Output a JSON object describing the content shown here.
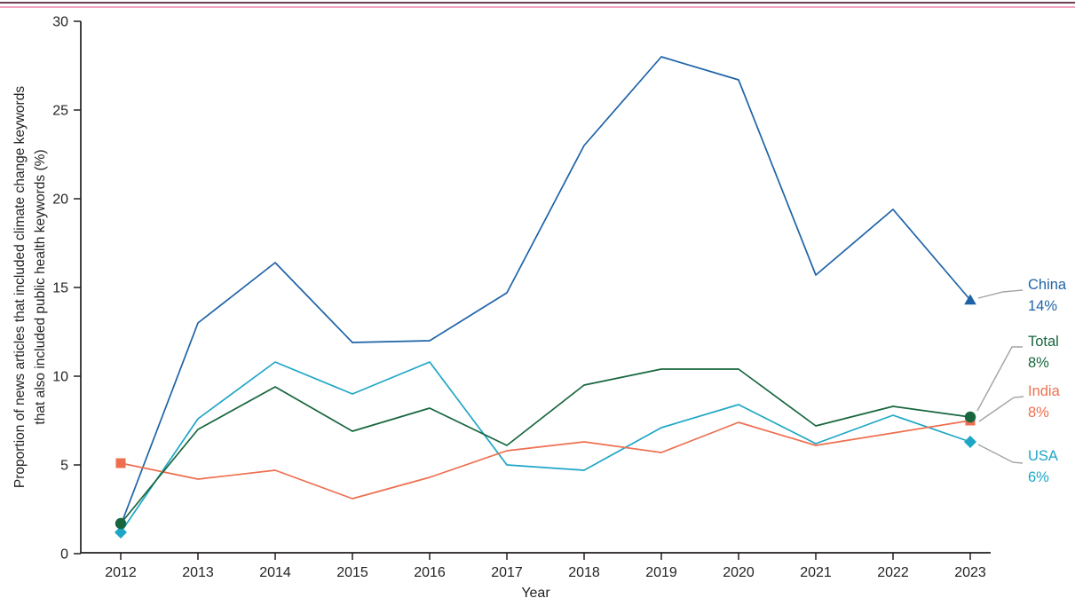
{
  "page": {
    "rule_dark_color": "#6e3e54",
    "rule_pink_color": "#f2a3c0",
    "axis_color": "#231f20",
    "leader_color": "#a3a3a3"
  },
  "chart_data": {
    "type": "line",
    "title": "",
    "xlabel": "Year",
    "ylabel_line1": "Proportion of news articles that included climate change keywords",
    "ylabel_line2": "that also included public health keywords (%)",
    "ylim": [
      0,
      30
    ],
    "yticks": [
      0,
      5,
      10,
      15,
      20,
      25,
      30
    ],
    "x": [
      "2012",
      "2013",
      "2014",
      "2015",
      "2016",
      "2017",
      "2018",
      "2019",
      "2020",
      "2021",
      "2022",
      "2023"
    ],
    "grid": false,
    "legend_position": "right-end-labels",
    "series": [
      {
        "name": "China",
        "color": "#1e63a8",
        "marker": "triangle",
        "start_marker": false,
        "end_label": "China",
        "end_value": "14%",
        "values": [
          1.6,
          13.0,
          16.4,
          11.9,
          12.0,
          14.7,
          23.0,
          28.0,
          26.7,
          15.7,
          19.4,
          14.3
        ]
      },
      {
        "name": "Total",
        "color": "#17663e",
        "marker": "circle",
        "start_marker": true,
        "end_label": "Total",
        "end_value": "8%",
        "values": [
          1.7,
          7.0,
          9.4,
          6.9,
          8.2,
          6.1,
          9.5,
          10.4,
          10.4,
          7.2,
          8.3,
          7.7
        ]
      },
      {
        "name": "India",
        "color": "#ee6f50",
        "marker": "square",
        "start_marker": true,
        "end_label": "India",
        "end_value": "8%",
        "values": [
          5.1,
          4.2,
          4.7,
          3.1,
          4.3,
          5.8,
          6.3,
          5.7,
          7.4,
          6.1,
          6.8,
          7.5
        ]
      },
      {
        "name": "USA",
        "color": "#1ea6c6",
        "marker": "diamond",
        "start_marker": true,
        "end_label": "USA",
        "end_value": "6%",
        "values": [
          1.2,
          7.6,
          10.8,
          9.0,
          10.8,
          5.0,
          4.7,
          7.1,
          8.4,
          6.2,
          7.8,
          6.3
        ]
      }
    ]
  }
}
